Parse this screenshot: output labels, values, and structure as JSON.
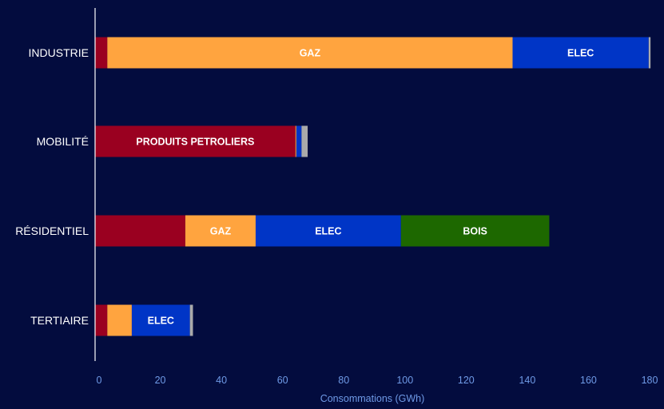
{
  "chart_data": {
    "type": "bar",
    "orientation": "horizontal",
    "stacked": true,
    "title": "",
    "xlabel": "Consommations (GWh)",
    "ylabel": "",
    "xlim": [
      0,
      180
    ],
    "xticks": [
      "0",
      "20",
      "40",
      "60",
      "80",
      "100",
      "120",
      "140",
      "160",
      "180"
    ],
    "grid": false,
    "legend": "none",
    "categories": [
      "INDUSTRIE",
      "MOBILITÉ",
      "RÉSIDENTIEL",
      "TERTIAIRE"
    ],
    "series": [
      {
        "color": "#9a0020",
        "values": [
          4,
          65.5,
          29.5,
          4
        ],
        "labels": [
          "",
          "PRODUITS PETROLIERS",
          "",
          ""
        ]
      },
      {
        "color": "#ffa43f",
        "values": [
          132.5,
          0.3,
          23,
          8
        ],
        "labels": [
          "GAZ",
          "",
          "GAZ",
          ""
        ]
      },
      {
        "color": "#0035c6",
        "values": [
          44.5,
          1.7,
          47.5,
          19
        ],
        "labels": [
          "ELEC",
          "",
          "ELEC",
          "ELEC"
        ]
      },
      {
        "color": "#1d6800",
        "values": [
          0,
          0,
          48.5,
          0
        ],
        "labels": [
          "",
          "",
          "BOIS",
          ""
        ]
      },
      {
        "color": "#aaaaaa",
        "values": [
          0.6,
          2,
          0,
          1
        ],
        "labels": [
          "",
          "",
          "",
          ""
        ]
      }
    ]
  },
  "colors": {
    "background": "#030c3e",
    "axis_line": "#ffffff",
    "category_text": "#ffffff",
    "tick_text": "#6f9ae6",
    "segment_text": "#ffffff"
  }
}
